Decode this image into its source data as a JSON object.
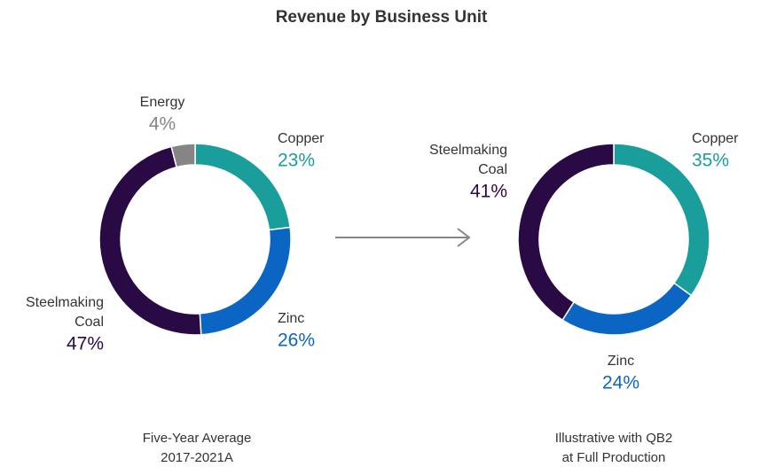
{
  "title": "Revenue by Business Unit",
  "chart_data": [
    {
      "type": "pie",
      "donut": true,
      "caption": [
        "Five-Year Average",
        "2017-2021A"
      ],
      "categories": [
        "Copper",
        "Zinc",
        "Steelmaking Coal",
        "Energy"
      ],
      "values": [
        23,
        26,
        47,
        4
      ],
      "value_labels": [
        "23%",
        "26%",
        "47%",
        "4%"
      ],
      "colors": [
        "#1a9e9b",
        "#0a66c2",
        "#2a0a45",
        "#858585"
      ]
    },
    {
      "type": "pie",
      "donut": true,
      "caption": [
        "Illustrative with QB2",
        "at Full Production"
      ],
      "categories": [
        "Copper",
        "Zinc",
        "Steelmaking Coal"
      ],
      "values": [
        35,
        24,
        41
      ],
      "value_labels": [
        "35%",
        "24%",
        "41%"
      ],
      "colors": [
        "#1a9e9b",
        "#0a66c2",
        "#2a0a45"
      ]
    }
  ]
}
